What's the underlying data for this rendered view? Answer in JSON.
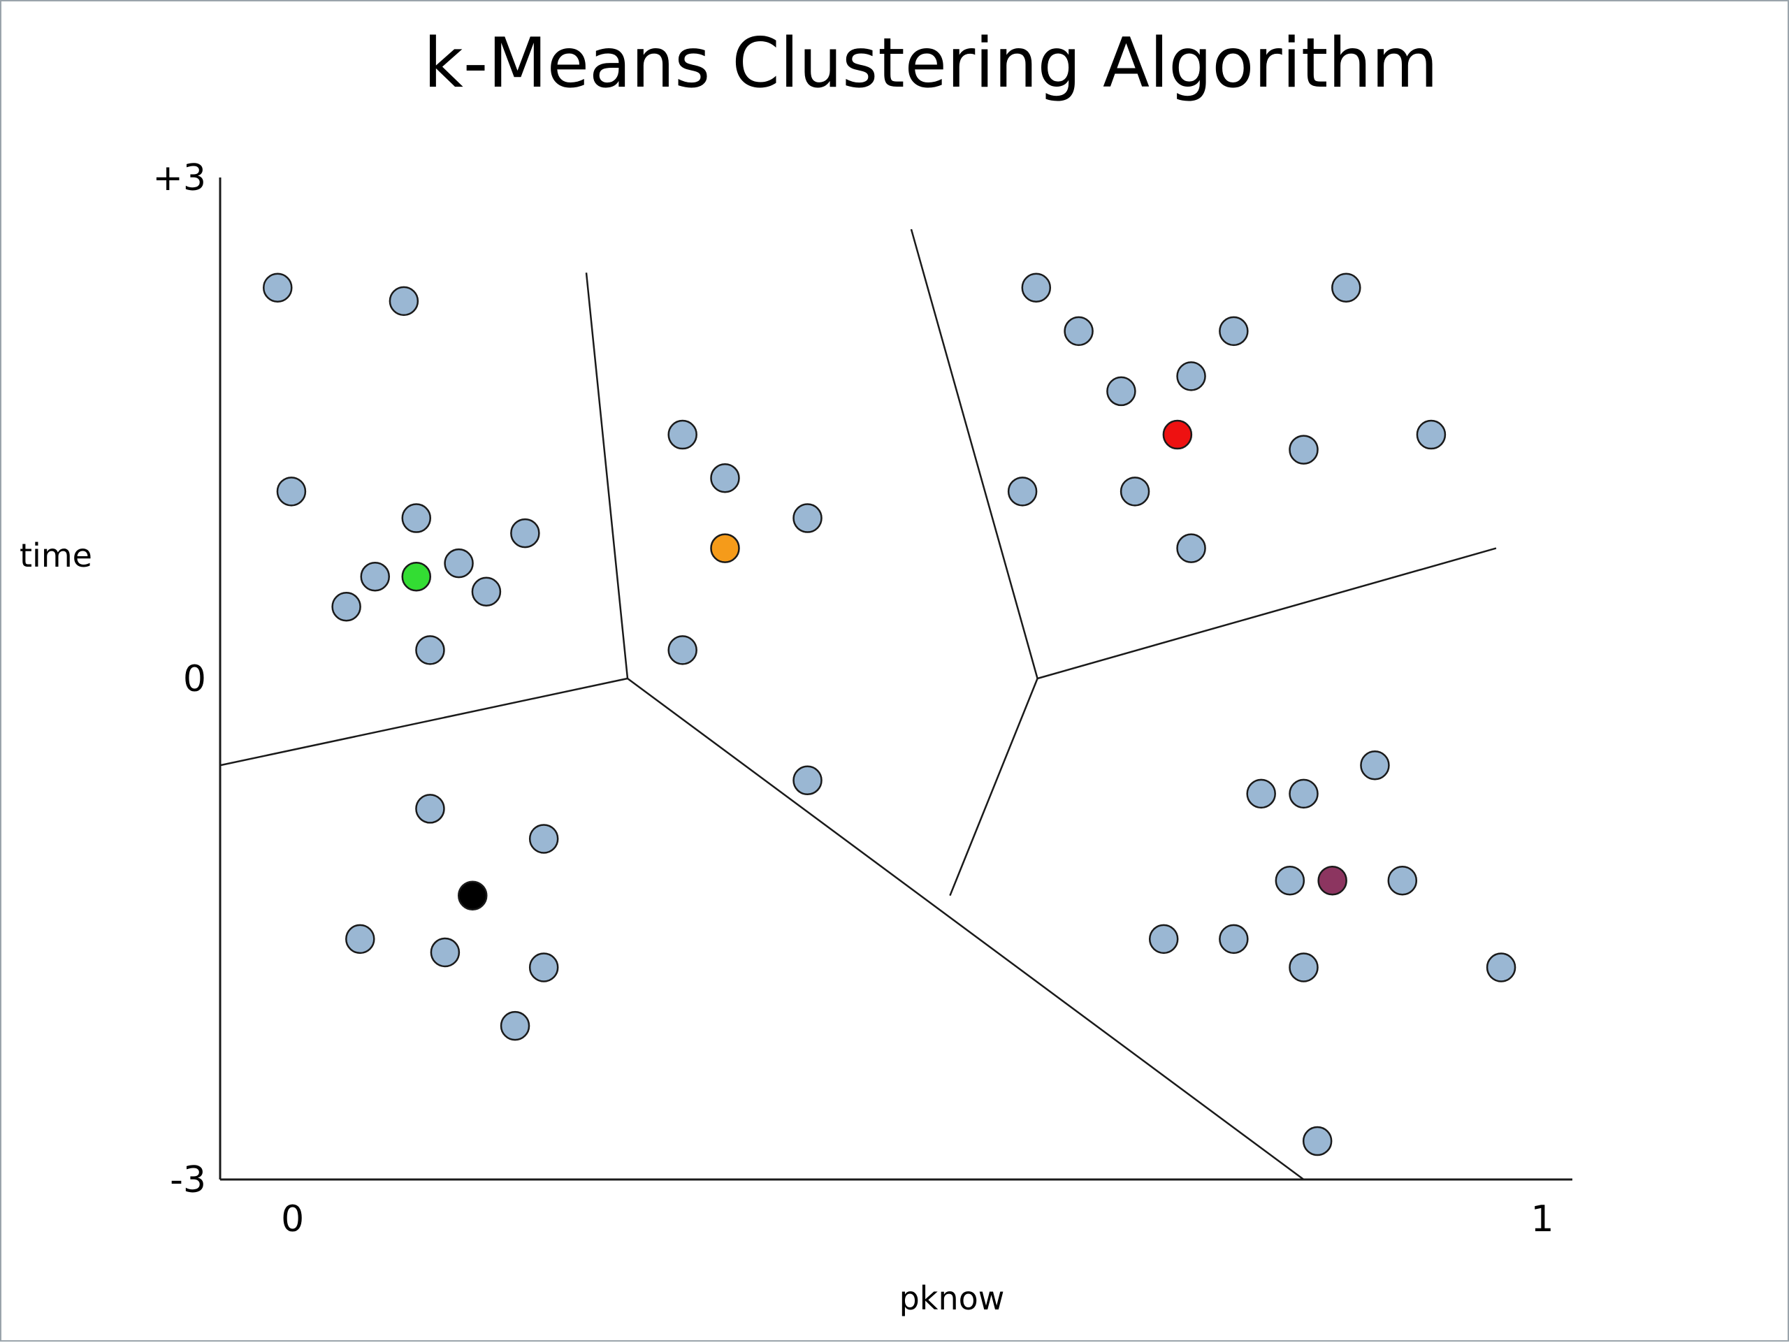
{
  "chart_data": {
    "type": "scatter",
    "title": "k-Means Clustering Algorithm",
    "xlabel": "pknow",
    "ylabel": "time",
    "x_ticks": [
      {
        "value": 0,
        "label": "0"
      },
      {
        "value": 1,
        "label": "1"
      }
    ],
    "y_ticks": [
      {
        "value": 3,
        "label": "+3"
      },
      {
        "value": 0,
        "label": "0"
      },
      {
        "value": -3,
        "label": "-3"
      }
    ],
    "xlim": [
      -0.058,
      1.024
    ],
    "ylim": [
      -3.0,
      3.0
    ],
    "point_color": "#9ab7d3",
    "points": [
      [
        -0.012,
        2.34
      ],
      [
        0.089,
        2.26
      ],
      [
        -0.001,
        1.12
      ],
      [
        0.099,
        0.96
      ],
      [
        0.186,
        0.87
      ],
      [
        0.066,
        0.61
      ],
      [
        0.133,
        0.69
      ],
      [
        0.155,
        0.52
      ],
      [
        0.043,
        0.43
      ],
      [
        0.11,
        0.17
      ],
      [
        0.312,
        1.46
      ],
      [
        0.346,
        1.2
      ],
      [
        0.412,
        0.96
      ],
      [
        0.312,
        0.17
      ],
      [
        0.412,
        -0.61
      ],
      [
        0.595,
        2.34
      ],
      [
        0.629,
        2.08
      ],
      [
        0.753,
        2.08
      ],
      [
        0.843,
        2.34
      ],
      [
        0.663,
        1.72
      ],
      [
        0.719,
        1.81
      ],
      [
        0.809,
        1.37
      ],
      [
        0.911,
        1.46
      ],
      [
        0.584,
        1.12
      ],
      [
        0.674,
        1.12
      ],
      [
        0.719,
        0.78
      ],
      [
        0.866,
        -0.52
      ],
      [
        0.775,
        -0.69
      ],
      [
        0.809,
        -0.69
      ],
      [
        0.798,
        -1.21
      ],
      [
        0.888,
        -1.21
      ],
      [
        0.697,
        -1.56
      ],
      [
        0.753,
        -1.56
      ],
      [
        0.809,
        -1.73
      ],
      [
        0.967,
        -1.73
      ],
      [
        0.82,
        -2.77
      ],
      [
        0.11,
        -0.78
      ],
      [
        0.201,
        -0.96
      ],
      [
        0.054,
        -1.56
      ],
      [
        0.122,
        -1.64
      ],
      [
        0.201,
        -1.73
      ],
      [
        0.178,
        -2.08
      ]
    ],
    "centroids": [
      {
        "x": 0.099,
        "y": 0.61,
        "color": "#33dd33"
      },
      {
        "x": 0.346,
        "y": 0.78,
        "color": "#f59b1a"
      },
      {
        "x": 0.708,
        "y": 1.46,
        "color": "#ee1111"
      },
      {
        "x": 0.832,
        "y": -1.21,
        "color": "#8c3560"
      },
      {
        "x": 0.144,
        "y": -1.3,
        "color": "#000000"
      }
    ],
    "boundaries": [
      [
        [
          0.235,
          2.43
        ],
        [
          0.268,
          0.0
        ]
      ],
      [
        [
          0.495,
          2.69
        ],
        [
          0.596,
          0.0
        ]
      ],
      [
        [
          -0.058,
          -0.52
        ],
        [
          0.268,
          0.0
        ]
      ],
      [
        [
          0.268,
          0.0
        ],
        [
          0.809,
          -3.0
        ]
      ],
      [
        [
          0.596,
          0.0
        ],
        [
          0.963,
          0.78
        ]
      ],
      [
        [
          0.596,
          0.0
        ],
        [
          0.526,
          -1.3
        ]
      ]
    ]
  }
}
